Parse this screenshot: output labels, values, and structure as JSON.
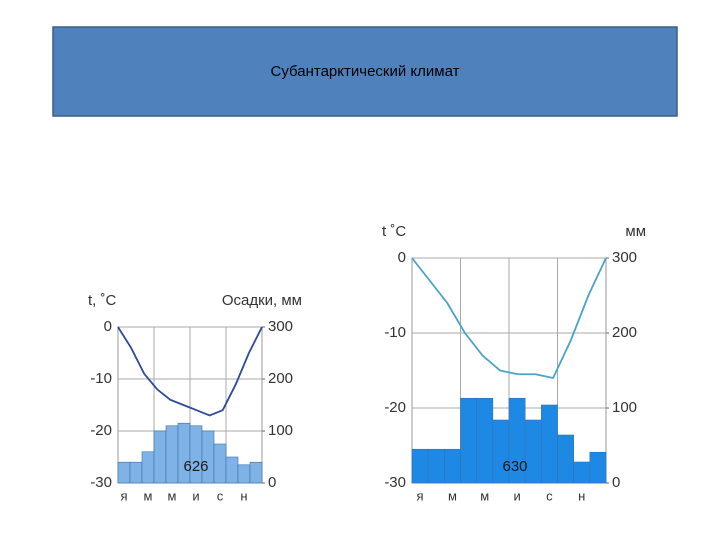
{
  "title": "Субантарктический климат",
  "chart_data": [
    {
      "type": "combo",
      "ylabel": "t, ˚C",
      "y2label": "Осадки, мм",
      "annotation": "626",
      "categories": [
        "я",
        null,
        "м",
        null,
        "м",
        null,
        "и",
        null,
        "с",
        null,
        "н",
        null
      ],
      "ylim": [
        -30,
        0
      ],
      "yticks": [
        -30,
        -20,
        -10,
        0
      ],
      "y2lim": [
        0,
        300
      ],
      "y2ticks": [
        0,
        100,
        200,
        300
      ],
      "grid": true,
      "series": [
        {
          "type": "bar",
          "axis": "y2",
          "color": "#7fb2e5",
          "values": [
            40,
            40,
            60,
            100,
            110,
            115,
            110,
            100,
            75,
            50,
            35,
            40
          ]
        },
        {
          "type": "line",
          "color": "#2b4a9a",
          "values": [
            0,
            -4,
            -9,
            -12,
            -14,
            -15,
            -16,
            -17,
            -16,
            -11,
            -5,
            0
          ]
        }
      ]
    },
    {
      "type": "combo",
      "ylabel": "t ˚C",
      "y2label": "мм",
      "annotation": "630",
      "categories": [
        "я",
        null,
        "м",
        null,
        "м",
        null,
        "и",
        null,
        "с",
        null,
        "н",
        null
      ],
      "ylim": [
        -30,
        0
      ],
      "yticks": [
        -30,
        -20,
        -10,
        0
      ],
      "y2lim": [
        0,
        300
      ],
      "y2ticks": [
        0,
        100,
        200,
        300
      ],
      "grid": true,
      "series": [
        {
          "type": "bar",
          "axis": "y2",
          "color": "#1e88e5",
          "values": [
            45,
            45,
            45,
            113,
            113,
            84,
            113,
            84,
            104,
            64,
            28,
            41
          ]
        },
        {
          "type": "line",
          "color": "#4aa3c8",
          "values": [
            0,
            -3,
            -6,
            -10,
            -13,
            -15,
            -15.5,
            -15.5,
            -16,
            -11,
            -5,
            0
          ]
        }
      ]
    }
  ]
}
